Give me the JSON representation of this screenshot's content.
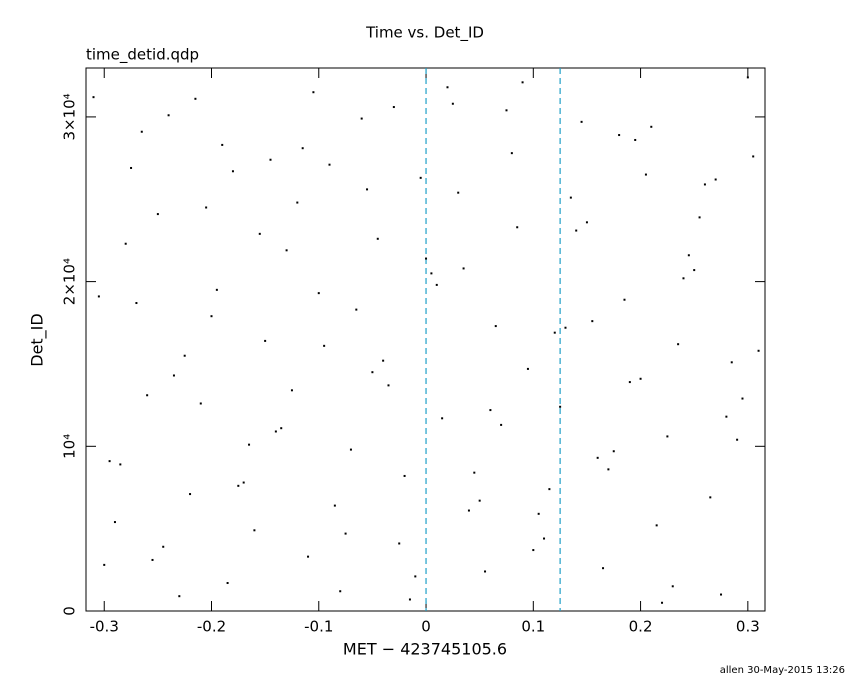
{
  "chart_data": {
    "type": "scatter",
    "title": "Time vs. Det_ID",
    "subtitle": "time_detid.qdp",
    "xlabel": "MET − 423745105.6",
    "ylabel": "Det_ID",
    "footer": "allen 30-May-2015 13:26",
    "color": "#000000",
    "xlim": [
      -0.317,
      0.316
    ],
    "ylim": [
      0,
      32970
    ],
    "xticks": [
      -0.3,
      -0.2,
      -0.1,
      0,
      0.1,
      0.2,
      0.3
    ],
    "yticks": [
      0,
      {
        "value": 10000,
        "label": "10⁴"
      },
      {
        "value": 20000,
        "label": "2×10⁴"
      },
      {
        "value": 30000,
        "label": "3×10⁴"
      }
    ],
    "vlines": [
      0,
      0.125
    ],
    "vline_color": "#1fa0c8",
    "x": [
      -0.31,
      -0.29,
      -0.27,
      -0.25,
      -0.23,
      -0.21,
      -0.19,
      -0.17,
      -0.15,
      -0.13,
      -0.11,
      -0.09,
      -0.07,
      -0.05,
      -0.03,
      -0.01,
      0.01,
      0.03,
      0.05,
      0.07,
      0.09,
      0.11,
      0.13,
      0.15,
      0.17,
      0.19,
      0.21,
      0.23,
      0.25,
      0.27,
      0.29,
      0.31,
      -0.3,
      -0.28,
      -0.26,
      -0.24,
      -0.22,
      -0.2,
      -0.18,
      -0.16,
      -0.14,
      -0.12,
      -0.1,
      -0.08,
      -0.06,
      -0.04,
      -0.02,
      0.0,
      0.02,
      0.04,
      0.06,
      0.08,
      0.1,
      0.12,
      0.14,
      0.16,
      0.18,
      0.2,
      0.22,
      0.24,
      0.26,
      0.28,
      0.3,
      -0.305,
      -0.285,
      -0.265,
      -0.245,
      -0.225,
      -0.205,
      -0.185,
      -0.165,
      -0.145,
      -0.125,
      -0.105,
      -0.085,
      -0.065,
      -0.045,
      -0.025,
      -0.005,
      0.015,
      0.035,
      0.055,
      0.075,
      0.095,
      0.115,
      0.135,
      0.155,
      0.175,
      0.195,
      0.215,
      0.235,
      0.255,
      0.275,
      0.295,
      -0.295,
      -0.275,
      -0.255,
      -0.235,
      -0.215,
      -0.195,
      -0.175,
      -0.155,
      -0.135,
      -0.115,
      -0.095,
      -0.075,
      -0.055,
      -0.035,
      -0.015,
      0.005,
      0.025,
      0.045,
      0.065,
      0.085,
      0.105,
      0.125,
      0.145,
      0.165,
      0.185,
      0.205,
      0.225,
      0.245,
      0.265,
      0.285,
      0.305
    ],
    "values": [
      31200,
      5400,
      18700,
      24100,
      900,
      12600,
      28300,
      7800,
      16400,
      21900,
      3300,
      27100,
      9800,
      14500,
      30600,
      2100,
      19800,
      25400,
      6700,
      11300,
      32100,
      4400,
      17200,
      23600,
      8600,
      13900,
      29400,
      1500,
      20700,
      26200,
      10400,
      15800,
      2800,
      22300,
      13100,
      30100,
      7100,
      17900,
      26700,
      4900,
      10900,
      24800,
      19300,
      1200,
      29900,
      15200,
      8200,
      21400,
      31800,
      6100,
      12200,
      27800,
      3700,
      16900,
      23100,
      9300,
      28900,
      14100,
      500,
      20200,
      25900,
      11800,
      32400,
      19100,
      8900,
      29100,
      3900,
      15500,
      24500,
      1700,
      10100,
      27400,
      13400,
      31500,
      6400,
      18300,
      22600,
      4100,
      26300,
      11700,
      20800,
      2400,
      30400,
      14700,
      7400,
      25100,
      17600,
      9700,
      28600,
      5200,
      16200,
      23900,
      1000,
      12900,
      9100,
      26900,
      3100,
      14300,
      31100,
      19500,
      7600,
      22900,
      11100,
      28100,
      16100,
      4700,
      25600,
      13700,
      700,
      20500,
      30800,
      8400,
      17300,
      23300,
      5900,
      12400,
      29700,
      2600,
      18900,
      26500,
      10600,
      21600,
      6900,
      15100,
      27600
    ]
  }
}
